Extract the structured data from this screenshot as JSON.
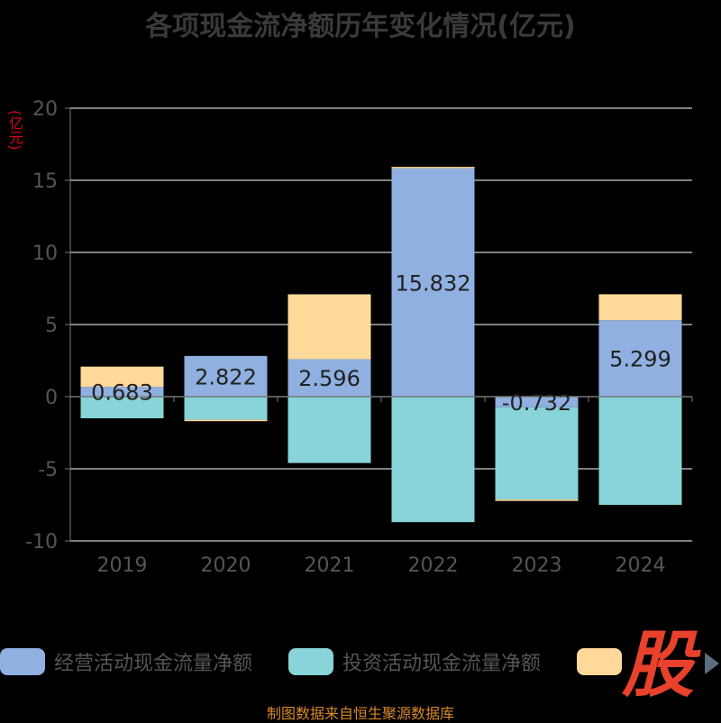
{
  "title": "各项现金流净额历年变化情况(亿元)",
  "unit_label": "(亿元)",
  "source_note": "制图数据来自恒生聚源数据库",
  "watermark_text": "股",
  "colors": {
    "operating": "#8fb0e0",
    "investing": "#88d4d8",
    "financing": "#ffd99a",
    "grid": "#ffffff",
    "axis_text": "#555555",
    "label_text": "#222222"
  },
  "legend": [
    {
      "name": "经营活动现金流量净额",
      "color": "#8fb0e0"
    },
    {
      "name": "投资活动现金流量净额",
      "color": "#88d4d8"
    },
    {
      "name": "",
      "color": "#ffd99a"
    }
  ],
  "legend_next_icon": "arrow-right-icon",
  "chart_data": {
    "type": "bar",
    "stacked": true,
    "title": "各项现金流净额历年变化情况(亿元)",
    "ylabel": "(亿元)",
    "categories": [
      "2019",
      "2020",
      "2021",
      "2022",
      "2023",
      "2024"
    ],
    "ylim": [
      -10,
      20
    ],
    "yticks": [
      -10,
      -5,
      0,
      5,
      10,
      15,
      20
    ],
    "grid": true,
    "legend_position": "bottom",
    "series": [
      {
        "name": "经营活动现金流量净额",
        "values": [
          0.683,
          2.822,
          2.596,
          15.832,
          -0.732,
          5.299
        ]
      },
      {
        "name": "投资活动现金流量净额",
        "values": [
          -1.5,
          -1.6,
          -4.6,
          -8.7,
          -6.4,
          -7.5
        ]
      },
      {
        "values": [
          1.4,
          -0.1,
          4.5,
          0.1,
          -0.1,
          1.8
        ]
      }
    ],
    "data_labels": [
      "0.683",
      "2.822",
      "2.596",
      "15.832",
      "-0.732",
      "5.299"
    ]
  }
}
